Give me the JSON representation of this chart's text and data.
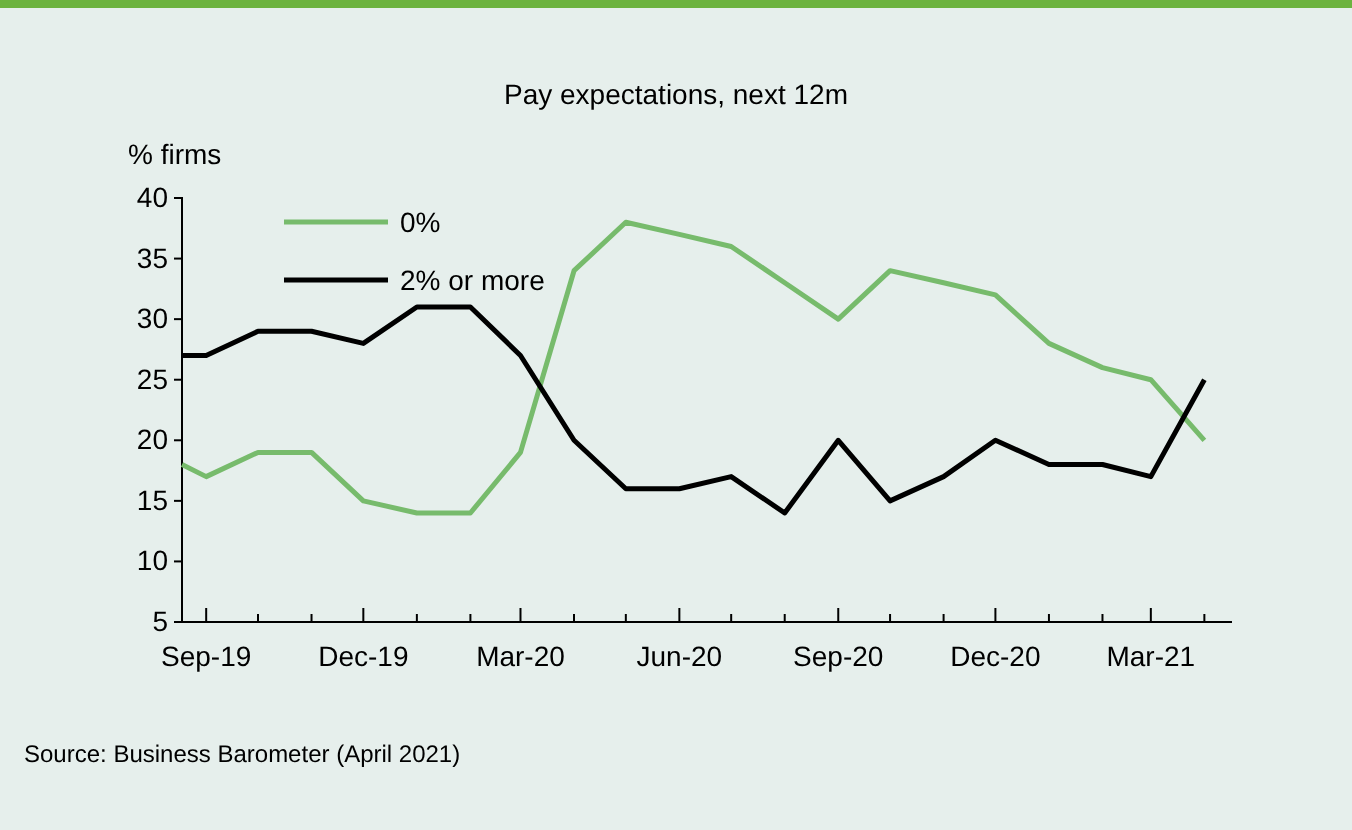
{
  "chart_data": {
    "type": "line",
    "title": "Pay expectations, next 12m",
    "ylabel": "% firms",
    "x": [
      "2019-09-01",
      "2019-09-15",
      "2019-10-15",
      "2019-11-15",
      "2019-12-15",
      "2020-01-15",
      "2020-02-15",
      "2020-03-15",
      "2020-04-15",
      "2020-05-15",
      "2020-06-15",
      "2020-07-15",
      "2020-08-15",
      "2020-09-15",
      "2020-10-15",
      "2020-11-15",
      "2020-12-15",
      "2021-01-15",
      "2021-02-15",
      "2021-03-15",
      "2021-04-15"
    ],
    "series": [
      {
        "name": "0%",
        "color": "#77bb6c",
        "values": [
          18,
          17,
          19,
          19,
          15,
          14,
          14,
          19,
          34,
          38,
          37,
          36,
          33,
          30,
          34,
          33,
          32,
          28,
          26,
          25,
          20
        ]
      },
      {
        "name": "2% or more",
        "color": "#000000",
        "values": [
          27,
          27,
          29,
          29,
          28,
          31,
          31,
          27,
          20,
          16,
          16,
          17,
          14,
          20,
          15,
          17,
          20,
          18,
          18,
          17,
          25
        ]
      }
    ],
    "xlim": [
      "2019-09-01",
      "2021-05-01"
    ],
    "xticks": [
      {
        "value": "2019-09-15",
        "label": "Sep-19"
      },
      {
        "value": "2019-10-15",
        "label": null
      },
      {
        "value": "2019-11-15",
        "label": null
      },
      {
        "value": "2019-12-15",
        "label": "Dec-19"
      },
      {
        "value": "2020-01-15",
        "label": null
      },
      {
        "value": "2020-02-15",
        "label": null
      },
      {
        "value": "2020-03-15",
        "label": "Mar-20"
      },
      {
        "value": "2020-04-15",
        "label": null
      },
      {
        "value": "2020-05-15",
        "label": null
      },
      {
        "value": "2020-06-15",
        "label": "Jun-20"
      },
      {
        "value": "2020-07-15",
        "label": null
      },
      {
        "value": "2020-08-15",
        "label": null
      },
      {
        "value": "2020-09-15",
        "label": "Sep-20"
      },
      {
        "value": "2020-10-15",
        "label": null
      },
      {
        "value": "2020-11-15",
        "label": null
      },
      {
        "value": "2020-12-15",
        "label": "Dec-20"
      },
      {
        "value": "2021-01-15",
        "label": null
      },
      {
        "value": "2021-02-15",
        "label": null
      },
      {
        "value": "2021-03-15",
        "label": "Mar-21"
      },
      {
        "value": "2021-04-15",
        "label": null
      }
    ],
    "ylim": [
      5,
      40
    ],
    "yticks": [
      5,
      10,
      15,
      20,
      25,
      30,
      35,
      40
    ],
    "grid": false,
    "legend": "top left",
    "marker": "none",
    "line_style": "solid",
    "annotations": [
      "Source: Business Barometer (April 2021)"
    ]
  }
}
